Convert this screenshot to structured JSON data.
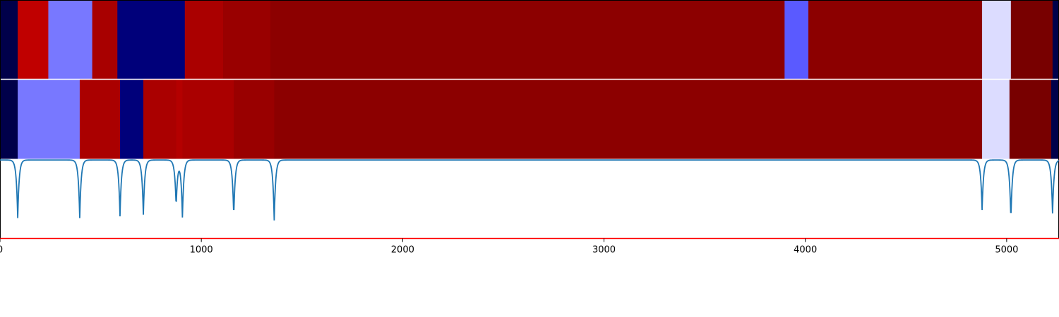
{
  "chart_data": {
    "type": "heatmap",
    "title": "",
    "xlabel": "",
    "ylabel": "",
    "xlim": [
      0,
      5260
    ],
    "x_ticks": [
      0,
      1000,
      2000,
      3000,
      4000,
      5000
    ],
    "x_tick_labels": [
      "0",
      "1000",
      "2000",
      "3000",
      "4000",
      "5000"
    ],
    "grid": false,
    "colormap": "seismic",
    "rows": [
      {
        "segments": [
          {
            "start": 0,
            "end": 88,
            "color": "#00004a"
          },
          {
            "start": 88,
            "end": 240,
            "color": "#c00000"
          },
          {
            "start": 240,
            "end": 458,
            "color": "#7878ff"
          },
          {
            "start": 458,
            "end": 583,
            "color": "#a80000"
          },
          {
            "start": 583,
            "end": 918,
            "color": "#00007a"
          },
          {
            "start": 918,
            "end": 1108,
            "color": "#aa0000"
          },
          {
            "start": 1108,
            "end": 1343,
            "color": "#990000"
          },
          {
            "start": 1343,
            "end": 3897,
            "color": "#8c0000"
          },
          {
            "start": 3897,
            "end": 4015,
            "color": "#5a5aff"
          },
          {
            "start": 4015,
            "end": 4878,
            "color": "#8c0000"
          },
          {
            "start": 4878,
            "end": 5021,
            "color": "#dcdcff"
          },
          {
            "start": 5021,
            "end": 5228,
            "color": "#780000"
          },
          {
            "start": 5228,
            "end": 5260,
            "color": "#00004a"
          }
        ]
      },
      {
        "segments": [
          {
            "start": 0,
            "end": 88,
            "color": "#00004a"
          },
          {
            "start": 88,
            "end": 396,
            "color": "#7878ff"
          },
          {
            "start": 396,
            "end": 596,
            "color": "#aa0000"
          },
          {
            "start": 596,
            "end": 712,
            "color": "#00007a"
          },
          {
            "start": 712,
            "end": 875,
            "color": "#aa0000"
          },
          {
            "start": 875,
            "end": 906,
            "color": "#b40000"
          },
          {
            "start": 906,
            "end": 1161,
            "color": "#aa0000"
          },
          {
            "start": 1161,
            "end": 1362,
            "color": "#990000"
          },
          {
            "start": 1362,
            "end": 4878,
            "color": "#8c0000"
          },
          {
            "start": 4878,
            "end": 5014,
            "color": "#dcdcff"
          },
          {
            "start": 5014,
            "end": 5221,
            "color": "#780000"
          },
          {
            "start": 5221,
            "end": 5260,
            "color": "#00004a"
          }
        ]
      }
    ],
    "signal": {
      "color": "#1f77b4",
      "baseline": 0,
      "ylim": [
        -1.35,
        0.02
      ],
      "dips": [
        {
          "x": 88,
          "depth": 1.0
        },
        {
          "x": 396,
          "depth": 1.0
        },
        {
          "x": 596,
          "depth": 0.97
        },
        {
          "x": 712,
          "depth": 0.94
        },
        {
          "x": 875,
          "depth": 0.8
        },
        {
          "x": 906,
          "depth": 0.98
        },
        {
          "x": 1161,
          "depth": 0.98
        },
        {
          "x": 1362,
          "depth": 1.04
        },
        {
          "x": 4878,
          "depth": 0.86
        },
        {
          "x": 5021,
          "depth": 1.04
        },
        {
          "x": 5228,
          "depth": 0.92
        }
      ]
    },
    "threshold": {
      "value": -1.35,
      "color": "#ff0000"
    }
  }
}
